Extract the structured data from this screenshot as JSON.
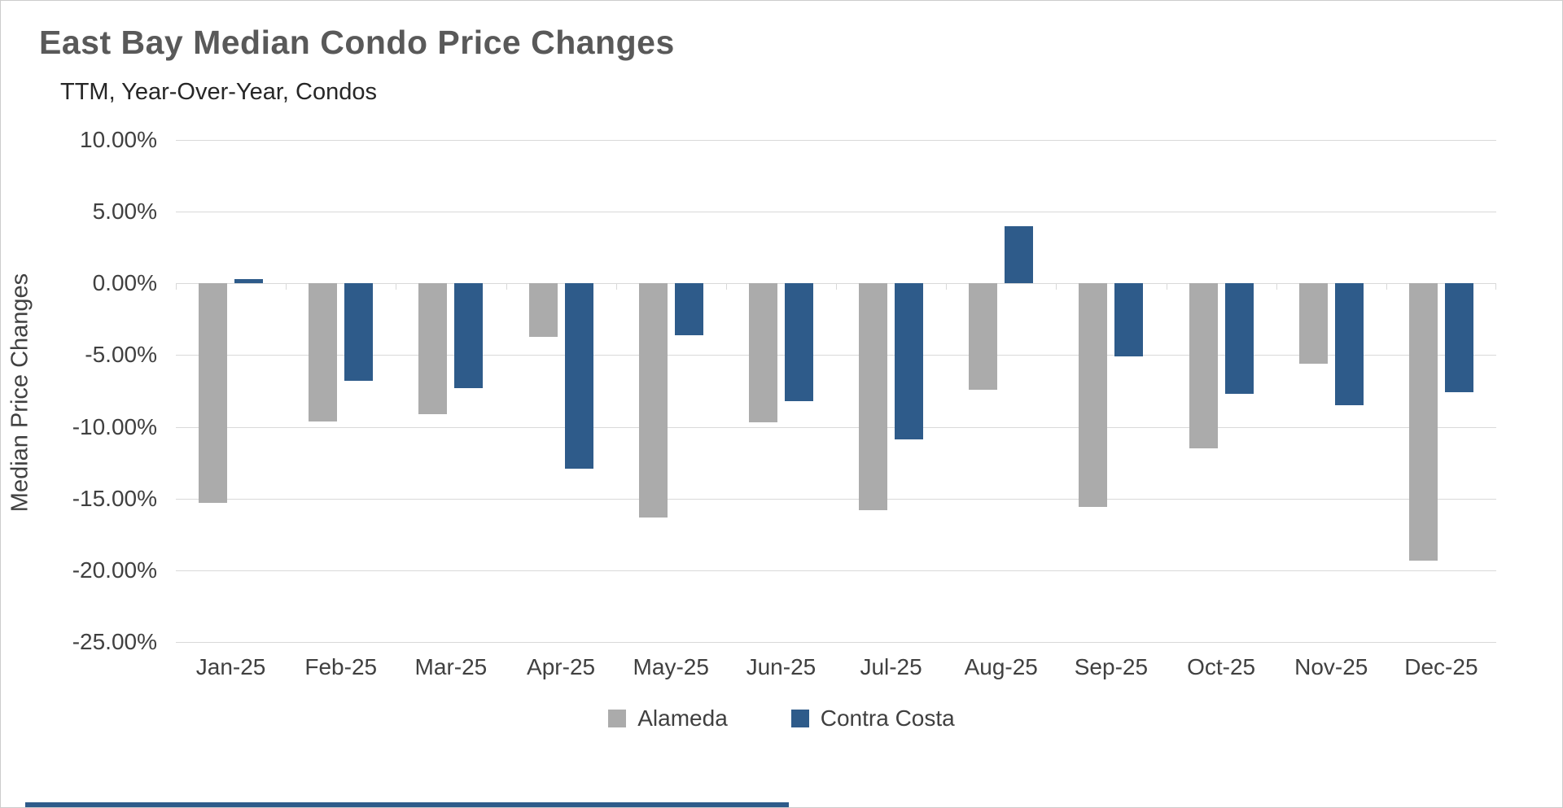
{
  "colors": {
    "alameda_gray": "#ABABAB",
    "contra_costa_blue": "#2E5B8A",
    "gridline": "#D9D9D9",
    "title_text": "#595959",
    "accent_strip": "#2E5B8A"
  },
  "chart_data": {
    "type": "bar",
    "title": "East Bay Median Condo Price Changes",
    "subtitle": "TTM, Year-Over-Year, Condos",
    "xlabel": "",
    "ylabel": "Median Price Changes",
    "categories": [
      "Jan-25",
      "Feb-25",
      "Mar-25",
      "Apr-25",
      "May-25",
      "Jun-25",
      "Jul-25",
      "Aug-25",
      "Sep-25",
      "Oct-25",
      "Nov-25",
      "Dec-25"
    ],
    "series": [
      {
        "name": "Alameda",
        "color": "#ABABAB",
        "values": [
          -15.3,
          -9.6,
          -9.1,
          -3.7,
          -16.3,
          -9.7,
          -15.8,
          -7.4,
          -15.6,
          -11.5,
          -5.6,
          -19.3
        ]
      },
      {
        "name": "Contra Costa",
        "color": "#2E5B8A",
        "values": [
          0.3,
          -6.8,
          -7.3,
          -12.9,
          -3.6,
          -8.2,
          -10.9,
          4.0,
          -5.1,
          -7.7,
          -8.5,
          -7.6
        ]
      }
    ],
    "ylim": [
      -25,
      10
    ],
    "ytick_step": 5,
    "ytick_labels": [
      "10.00%",
      "5.00%",
      "0.00%",
      "-5.00%",
      "-10.00%",
      "-15.00%",
      "-20.00%",
      "-25.00%"
    ],
    "grid": true,
    "legend_position": "bottom"
  }
}
